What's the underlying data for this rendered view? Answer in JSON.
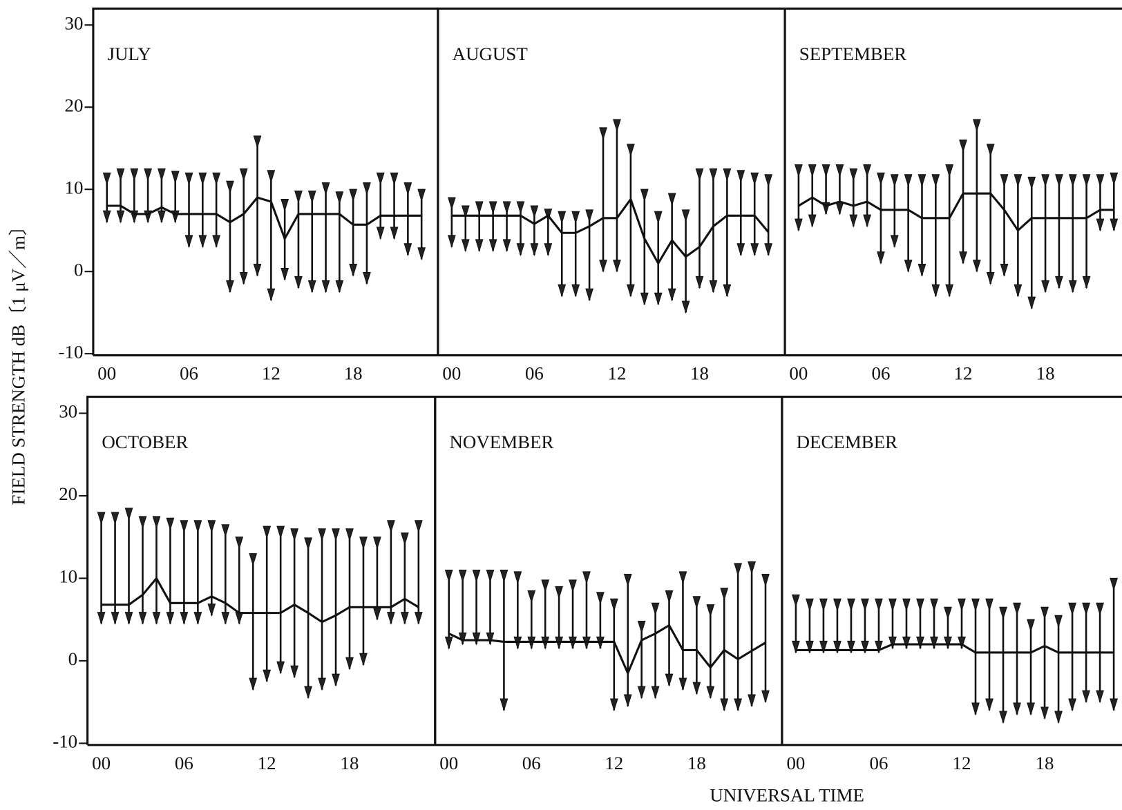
{
  "axis_labels": {
    "y": "FIELD  STRENGTH  dB〔1 μV／m〕",
    "x": "UNIVERSAL  TIME"
  },
  "chart_data": [
    {
      "type": "line",
      "title": "JULY",
      "x": [
        0,
        1,
        2,
        3,
        4,
        5,
        6,
        7,
        8,
        9,
        10,
        11,
        12,
        13,
        14,
        15,
        16,
        17,
        18,
        19,
        20,
        21,
        22,
        23
      ],
      "values": [
        8,
        8,
        7,
        7,
        7.8,
        7,
        7,
        7,
        7,
        6,
        7,
        9,
        8.5,
        4,
        7,
        7,
        7,
        7,
        5.7,
        5.7,
        6.8,
        6.8,
        6.8,
        6.8
      ],
      "upper": [
        12,
        12.5,
        12.5,
        12.5,
        12.5,
        12.2,
        12,
        12,
        12,
        11,
        12.5,
        16.5,
        12.3,
        8.8,
        9.8,
        9.8,
        10.8,
        9.7,
        10,
        10.8,
        12,
        12,
        10.8,
        10
      ],
      "lower": [
        6,
        6,
        6,
        6,
        6,
        6,
        3,
        3,
        3,
        -2.5,
        -1.5,
        -0.5,
        -3.5,
        -1,
        -2,
        -2.5,
        -2.5,
        -2.5,
        -0.5,
        -1.5,
        4,
        4,
        2,
        1.5
      ],
      "xlim": [
        -1,
        24.2
      ],
      "ylim": [
        -10.2,
        32
      ],
      "yticks": [
        30,
        20,
        10,
        0,
        -10
      ],
      "xticks": [
        {
          "value": 0,
          "label": "00"
        },
        {
          "value": 6,
          "label": "06"
        },
        {
          "value": 12,
          "label": "12"
        },
        {
          "value": 18,
          "label": "18"
        }
      ]
    },
    {
      "type": "line",
      "title": "AUGUST",
      "x": [
        0,
        1,
        2,
        3,
        4,
        5,
        6,
        7,
        8,
        9,
        10,
        11,
        12,
        13,
        14,
        15,
        16,
        17,
        18,
        19,
        20,
        21,
        22,
        23
      ],
      "values": [
        6.8,
        6.8,
        6.8,
        6.8,
        6.8,
        6.8,
        5.8,
        6.8,
        4.7,
        4.7,
        5.5,
        6.5,
        6.5,
        8.8,
        4,
        1,
        3.8,
        1.8,
        3,
        5.5,
        6.8,
        6.8,
        6.8,
        4.8
      ],
      "upper": [
        9,
        8,
        8.5,
        8.5,
        8.5,
        8.5,
        8,
        7.6,
        7.3,
        7.3,
        7.5,
        17.5,
        18.5,
        15.5,
        10,
        7.3,
        9.5,
        7.5,
        12.5,
        12.5,
        12.5,
        12.3,
        12,
        11.8
      ],
      "lower": [
        3,
        2.5,
        2.5,
        2.5,
        2.5,
        2,
        2,
        2,
        -3,
        -3,
        -3.5,
        0,
        0,
        -3,
        -4,
        -4,
        -3.5,
        -5,
        -2,
        -2.5,
        -3,
        2,
        2,
        2
      ],
      "xlim": [
        -1,
        24.2
      ],
      "ylim": [
        -10.2,
        32
      ],
      "xticks": [
        {
          "value": 0,
          "label": "00"
        },
        {
          "value": 6,
          "label": "06"
        },
        {
          "value": 12,
          "label": "12"
        },
        {
          "value": 18,
          "label": "18"
        }
      ]
    },
    {
      "type": "line",
      "title": "SEPTEMBER",
      "x": [
        0,
        1,
        2,
        3,
        4,
        5,
        6,
        7,
        8,
        9,
        10,
        11,
        12,
        13,
        14,
        15,
        16,
        17,
        18,
        19,
        20,
        21,
        22,
        23
      ],
      "values": [
        8,
        9,
        8,
        8.5,
        8,
        8.5,
        7.5,
        7.5,
        7.5,
        6.5,
        6.5,
        6.5,
        9.5,
        9.5,
        9.5,
        7.5,
        5,
        6.5,
        6.5,
        6.5,
        6.5,
        6.5,
        7.5,
        7.5
      ],
      "upper": [
        13,
        13,
        13,
        13,
        12.5,
        13,
        12,
        11.8,
        11.8,
        11.8,
        11.8,
        13,
        16,
        18.5,
        15.5,
        11.8,
        11.8,
        11.5,
        11.8,
        11.8,
        11.8,
        11.8,
        11.8,
        12
      ],
      "lower": [
        5,
        5.5,
        7,
        7,
        5.5,
        5.5,
        1,
        3,
        0,
        -0.5,
        -3,
        -3,
        1,
        0,
        -1.5,
        -0.5,
        -3,
        -4.5,
        -2.5,
        -2,
        -2.5,
        -2,
        5,
        5
      ],
      "xlim": [
        -1,
        24.2
      ],
      "ylim": [
        -10.2,
        32
      ],
      "xticks": [
        {
          "value": 0,
          "label": "00"
        },
        {
          "value": 6,
          "label": "06"
        },
        {
          "value": 12,
          "label": "12"
        },
        {
          "value": 18,
          "label": "18"
        }
      ]
    },
    {
      "type": "line",
      "title": "OCTOBER",
      "x": [
        0,
        1,
        2,
        3,
        4,
        5,
        6,
        7,
        8,
        9,
        10,
        11,
        12,
        13,
        14,
        15,
        16,
        17,
        18,
        19,
        20,
        21,
        22,
        23
      ],
      "values": [
        6.8,
        6.8,
        6.8,
        8,
        10,
        7,
        7,
        7,
        7.8,
        7,
        5.8,
        5.8,
        5.8,
        5.8,
        6.8,
        5.8,
        4.7,
        5.5,
        6.5,
        6.5,
        6.5,
        6.5,
        7.5,
        6.5
      ],
      "upper": [
        18,
        18,
        18.5,
        17.5,
        17.5,
        17.3,
        17,
        17,
        17,
        16.5,
        15,
        13,
        16.3,
        16.3,
        16,
        14.9,
        16,
        16,
        16,
        15,
        15,
        17,
        15.5,
        17
      ],
      "lower": [
        4.5,
        4.5,
        4.5,
        4.5,
        4.5,
        4.5,
        4.5,
        4.5,
        5.5,
        4.5,
        4.5,
        -3.5,
        -2.5,
        -1.5,
        -2,
        -4.5,
        -3.5,
        -3,
        -1,
        -0.5,
        5,
        4.5,
        4.5,
        4.5
      ],
      "xlim": [
        -1,
        24.2
      ],
      "ylim": [
        -10.2,
        32
      ],
      "yticks": [
        30,
        20,
        10,
        0,
        -10
      ],
      "xticks": [
        {
          "value": 0,
          "label": "00"
        },
        {
          "value": 6,
          "label": "06"
        },
        {
          "value": 12,
          "label": "12"
        },
        {
          "value": 18,
          "label": "18"
        }
      ]
    },
    {
      "type": "line",
      "title": "NOVEMBER",
      "x": [
        0,
        1,
        2,
        3,
        4,
        5,
        6,
        7,
        8,
        9,
        10,
        11,
        12,
        13,
        14,
        15,
        16,
        17,
        18,
        19,
        20,
        21,
        22,
        23
      ],
      "values": [
        3.3,
        2.5,
        2.5,
        2.5,
        2.3,
        2.3,
        2.3,
        2.3,
        2.3,
        2.3,
        2.3,
        2.3,
        2.3,
        -1.5,
        2.5,
        3.3,
        4.3,
        1.3,
        1.3,
        -0.8,
        1.3,
        0.2,
        1.2,
        2.2
      ],
      "upper": [
        11,
        11,
        11,
        11,
        11,
        10.8,
        8.5,
        9.8,
        9,
        9.8,
        10.8,
        8.3,
        7.5,
        10.5,
        4.8,
        7,
        8.5,
        10.8,
        7.8,
        6.8,
        8.8,
        11.8,
        12,
        10.5
      ],
      "lower": [
        1.5,
        2,
        2,
        2,
        -6,
        1.5,
        1.5,
        1.5,
        1.5,
        1.5,
        1.5,
        1.5,
        -6,
        -5.5,
        -4.5,
        -4.5,
        -3,
        -3.5,
        -4,
        -4.5,
        -6,
        -6,
        -5.5,
        -5
      ],
      "xlim": [
        -1,
        24.2
      ],
      "ylim": [
        -10.2,
        32
      ],
      "xticks": [
        {
          "value": 0,
          "label": "00"
        },
        {
          "value": 6,
          "label": "06"
        },
        {
          "value": 12,
          "label": "12"
        },
        {
          "value": 18,
          "label": "18"
        }
      ]
    },
    {
      "type": "line",
      "title": "DECEMBER",
      "x": [
        0,
        1,
        2,
        3,
        4,
        5,
        6,
        7,
        8,
        9,
        10,
        11,
        12,
        13,
        14,
        15,
        16,
        17,
        18,
        19,
        20,
        21,
        22,
        23
      ],
      "values": [
        1.3,
        1.3,
        1.3,
        1.3,
        1.3,
        1.3,
        1.3,
        2,
        2,
        2,
        2,
        2,
        2,
        1,
        1,
        1,
        1,
        1,
        1.8,
        1,
        1,
        1,
        1,
        1
      ],
      "upper": [
        8,
        7.5,
        7.5,
        7.5,
        7.5,
        7.5,
        7.5,
        7.5,
        7.5,
        7.5,
        7.5,
        6.5,
        7.5,
        7.5,
        7.5,
        6.5,
        7,
        5,
        6.5,
        5.5,
        7,
        7,
        7,
        10
      ],
      "lower": [
        1,
        1,
        1,
        1,
        1,
        1,
        1,
        1.5,
        1.5,
        1.5,
        1.5,
        1.5,
        1.5,
        -6.5,
        -6,
        -7.5,
        -6.5,
        -6.5,
        -7,
        -7.5,
        -6,
        -5,
        -5,
        -6
      ],
      "xlim": [
        -1,
        24.2
      ],
      "ylim": [
        -10.2,
        32
      ],
      "xticks": [
        {
          "value": 0,
          "label": "00"
        },
        {
          "value": 6,
          "label": "06"
        },
        {
          "value": 12,
          "label": "12"
        },
        {
          "value": 18,
          "label": "18"
        }
      ]
    }
  ]
}
